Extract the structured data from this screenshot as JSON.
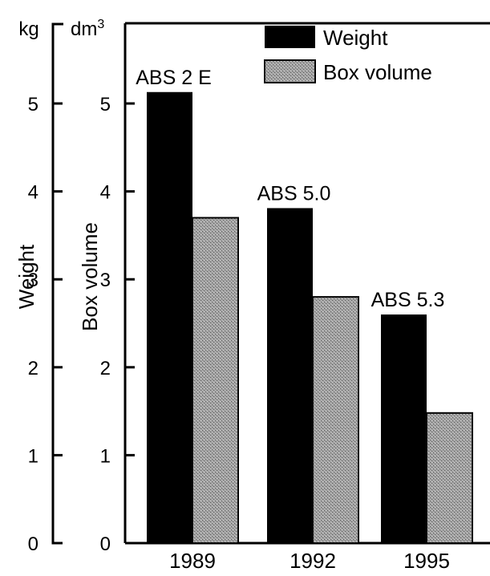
{
  "chart_data": {
    "type": "bar",
    "categories": [
      "1989",
      "1992",
      "1995"
    ],
    "series": [
      {
        "name": "Weight",
        "unit": "kg",
        "values": [
          5.13,
          3.81,
          2.6
        ]
      },
      {
        "name": "Box volume",
        "unit": "dm3",
        "values": [
          3.7,
          2.8,
          1.48
        ]
      }
    ],
    "bar_labels": [
      "ABS 2 E",
      "ABS 5.0",
      "ABS 5.3"
    ],
    "y_left": {
      "label": "Weight",
      "unit": "kg"
    },
    "y_right": {
      "label": "Box volume",
      "unit_base": "dm",
      "unit_sup": "3"
    },
    "ylim": [
      0,
      5.8
    ],
    "yticks": [
      "0",
      "1",
      "2",
      "3",
      "4",
      "5"
    ],
    "legend": {
      "position": "top-right",
      "items": [
        "Weight",
        "Box volume"
      ]
    },
    "colors": {
      "weight": "#000000",
      "box_volume": "#9a9a9a"
    },
    "grid": false
  }
}
